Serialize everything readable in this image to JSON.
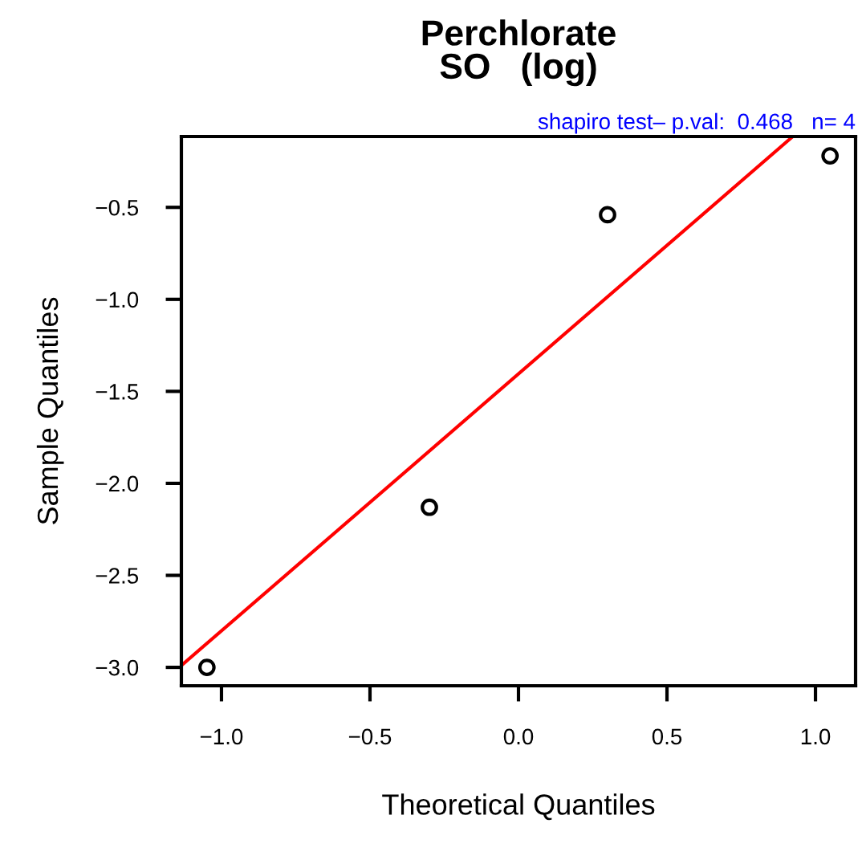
{
  "chart_data": {
    "type": "scatter",
    "title": "Perchlorate\nSO   (log)",
    "xlabel": "Theoretical Quantiles",
    "ylabel": "Sample Quantiles",
    "annotations": [
      "shapiro test– p.val:  0.468   n= 4"
    ],
    "x": [
      -1.049,
      -0.3,
      0.3,
      1.049
    ],
    "series": [
      {
        "color": "#000000",
        "marker": "circle",
        "values": [
          -3.0,
          -2.13,
          -0.54,
          -0.22
        ]
      },
      {
        "type": "line",
        "color": "#ff0000",
        "x": [
          -1.135,
          0.92
        ],
        "values": [
          -2.99,
          -0.12
        ]
      }
    ],
    "xlim": [
      -1.135,
      1.135
    ],
    "ylim": [
      -3.1,
      -0.115
    ],
    "xticks": [
      {
        "value": -1.0,
        "label": "−1.0"
      },
      {
        "value": -0.5,
        "label": "−0.5"
      },
      {
        "value": 0.0,
        "label": "0.0"
      },
      0.5,
      {
        "value": 1.0,
        "label": "1.0"
      }
    ],
    "yticks": [
      {
        "value": -3.0,
        "label": "−3.0"
      },
      {
        "value": -2.5,
        "label": "−2.5"
      },
      {
        "value": -2.0,
        "label": "−2.0"
      },
      {
        "value": -1.5,
        "label": "−1.5"
      },
      {
        "value": -1.0,
        "label": "−1.0"
      },
      {
        "value": -0.5,
        "label": "−0.5"
      }
    ],
    "grid": false,
    "legend": false
  }
}
